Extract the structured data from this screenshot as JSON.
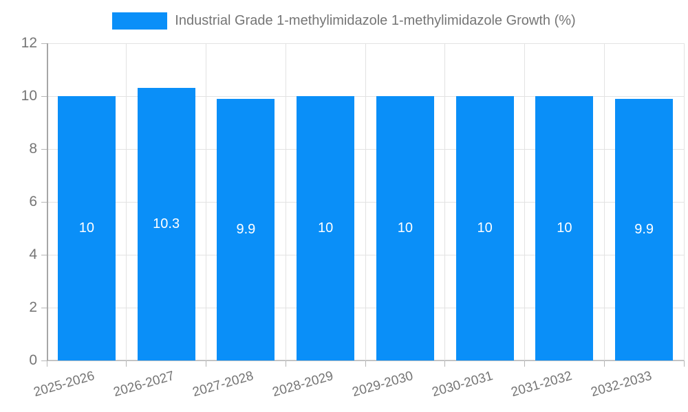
{
  "legend": {
    "label": "Industrial Grade 1-methylimidazole 1-methylimidazole Growth (%)",
    "swatch_color": "#0a8ff8"
  },
  "chart_data": {
    "type": "bar",
    "title": "Industrial Grade 1-methylimidazole 1-methylimidazole Growth (%)",
    "categories": [
      "2025-2026",
      "2026-2027",
      "2027-2028",
      "2028-2029",
      "2029-2030",
      "2030-2031",
      "2031-2032",
      "2032-2033"
    ],
    "values": [
      10,
      10.3,
      9.9,
      10,
      10,
      10,
      10,
      9.9
    ],
    "value_labels": [
      "10",
      "10.3",
      "9.9",
      "10",
      "10",
      "10",
      "10",
      "9.9"
    ],
    "xlabel": "",
    "ylabel": "",
    "ylim": [
      0,
      12
    ],
    "yticks": [
      0,
      2,
      4,
      6,
      8,
      10,
      12
    ],
    "grid": true,
    "legend_position": "top",
    "bar_color": "#0a8ff8",
    "data_label_color": "#ffffff",
    "axis_text_color": "#757575"
  }
}
